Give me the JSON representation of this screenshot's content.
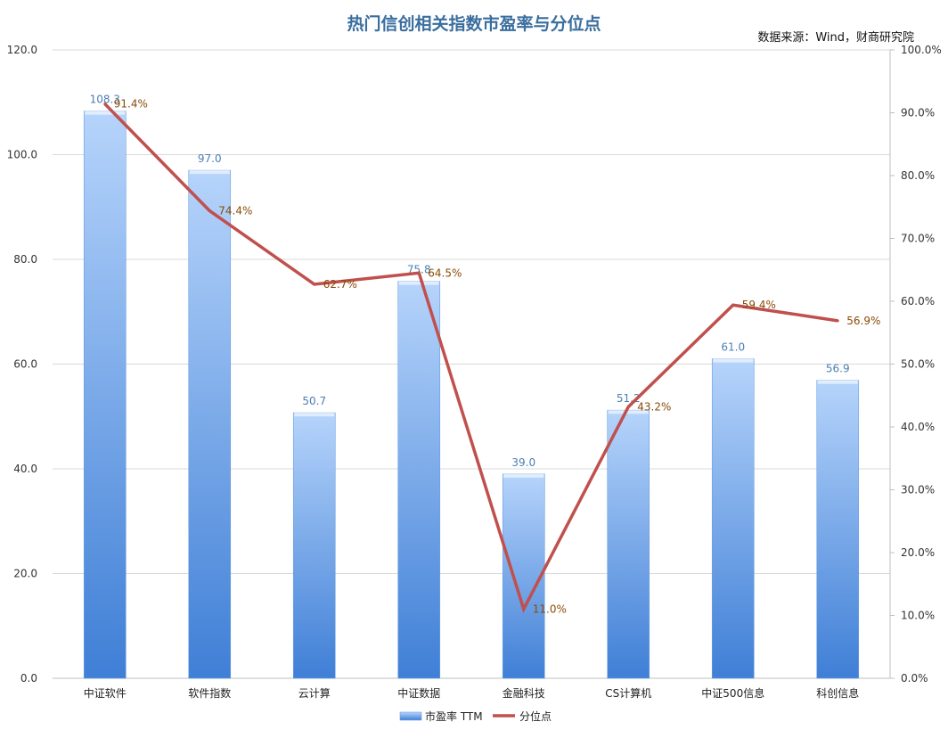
{
  "chart_data": {
    "type": "bar",
    "title": "热门信创相关指数市盈率与分位点",
    "source": "数据来源：Wind，财商研究院",
    "categories": [
      "中证软件",
      "软件指数",
      "云计算",
      "中证数据",
      "金融科技",
      "CS计算机",
      "中证500信息",
      "科创信息"
    ],
    "series": [
      {
        "name": "市盈率 TTM",
        "type": "bar",
        "axis": "left",
        "values": [
          108.3,
          97.0,
          50.7,
          75.8,
          39.0,
          51.2,
          61.0,
          56.9
        ],
        "labels": [
          "108.3",
          "97.0",
          "50.7",
          "75.8",
          "39.0",
          "51.2",
          "61.0",
          "56.9"
        ]
      },
      {
        "name": "分位点",
        "type": "line",
        "axis": "right",
        "values": [
          91.4,
          74.4,
          62.7,
          64.5,
          11.0,
          43.2,
          59.4,
          56.9
        ],
        "labels": [
          "91.4%",
          "74.4%",
          "62.7%",
          "64.5%",
          "11.0%",
          "43.2%",
          "59.4%",
          "56.9%"
        ]
      }
    ],
    "ylim_left": [
      0,
      120
    ],
    "ylim_right": [
      0,
      100
    ],
    "left_ticks": [
      "0.0",
      "20.0",
      "40.0",
      "60.0",
      "80.0",
      "100.0",
      "120.0"
    ],
    "right_ticks": [
      "0.0%",
      "10.0%",
      "20.0%",
      "30.0%",
      "40.0%",
      "50.0%",
      "60.0%",
      "70.0%",
      "80.0%",
      "90.0%",
      "100.0%"
    ],
    "grid": true,
    "legend_position": "bottom",
    "colors": {
      "bar_top": "#b6d4fb",
      "bar_bottom": "#3f7fd6",
      "line": "#c0504d",
      "bar_label": "#4a7fb5",
      "line_label": "#8a4b08",
      "title": "#3a6e9e"
    }
  }
}
